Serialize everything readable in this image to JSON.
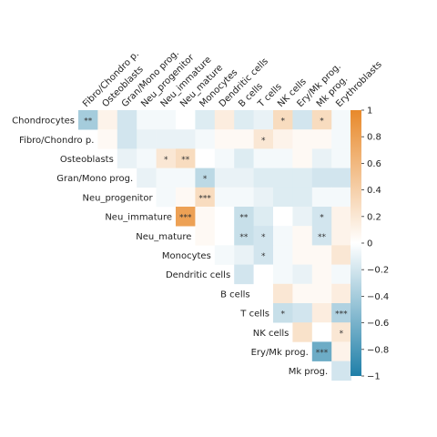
{
  "chart_data": {
    "type": "heatmap",
    "title": "",
    "xlabel": "",
    "ylabel": "",
    "rows": [
      "Chondrocytes",
      "Fibro/Chondro p.",
      "Osteoblasts",
      "Gran/Mono prog.",
      "Neu_progenitor",
      "Neu_immature",
      "Neu_mature",
      "Monocytes",
      "Dendritic cells",
      "B cells",
      "T cells",
      "NK cells",
      "Ery/Mk prog.",
      "Mk prog."
    ],
    "columns": [
      "Fibro/Chondro p.",
      "Osteoblasts",
      "Gran/Mono prog.",
      "Neu_progenitor",
      "Neu_immature",
      "Neu_mature",
      "Monocytes",
      "Dendritic cells",
      "B cells",
      "T cells",
      "NK cells",
      "Ery/Mk prog.",
      "Mk prog.",
      "Erythroblasts"
    ],
    "values": [
      [
        -0.4,
        0.1,
        -0.2,
        -0.05,
        -0.05,
        0,
        -0.15,
        0.15,
        -0.15,
        -0.1,
        0.3,
        -0.2,
        0.3,
        -0.05
      ],
      [
        null,
        0.05,
        -0.2,
        -0.1,
        -0.1,
        -0.1,
        -0.05,
        0.05,
        0.05,
        0.2,
        0.1,
        0.05,
        0.05,
        -0.05
      ],
      [
        null,
        null,
        -0.1,
        -0.05,
        0.2,
        0.3,
        0,
        -0.05,
        -0.15,
        -0.05,
        -0.05,
        0.05,
        -0.1,
        -0.05
      ],
      [
        null,
        null,
        null,
        -0.1,
        -0.05,
        -0.05,
        -0.3,
        -0.1,
        -0.1,
        -0.15,
        -0.15,
        -0.15,
        -0.2,
        -0.2
      ],
      [
        null,
        null,
        null,
        null,
        -0.05,
        0.05,
        0.3,
        -0.05,
        -0.05,
        -0.1,
        -0.15,
        -0.15,
        -0.05,
        -0.05
      ],
      [
        null,
        null,
        null,
        null,
        null,
        0.8,
        0.05,
        0,
        -0.25,
        -0.15,
        0,
        -0.1,
        -0.2,
        0.1
      ],
      [
        null,
        null,
        null,
        null,
        null,
        null,
        0.05,
        0,
        -0.25,
        -0.2,
        -0.05,
        0.05,
        -0.2,
        0.1
      ],
      [
        null,
        null,
        null,
        null,
        null,
        null,
        null,
        -0.05,
        -0.1,
        -0.2,
        -0.05,
        0.05,
        0.05,
        0.2
      ],
      [
        null,
        null,
        null,
        null,
        null,
        null,
        null,
        null,
        -0.2,
        0,
        -0.05,
        -0.1,
        0.05,
        -0.05
      ],
      [
        null,
        null,
        null,
        null,
        null,
        null,
        null,
        null,
        null,
        0,
        0.2,
        0.05,
        0.05,
        0.15
      ],
      [
        null,
        null,
        null,
        null,
        null,
        null,
        null,
        null,
        null,
        null,
        -0.25,
        -0.2,
        0.15,
        -0.35
      ],
      [
        null,
        null,
        null,
        null,
        null,
        null,
        null,
        null,
        null,
        null,
        null,
        0.25,
        0,
        0.2
      ],
      [
        null,
        null,
        null,
        null,
        null,
        null,
        null,
        null,
        null,
        null,
        null,
        null,
        -0.65,
        0.1
      ],
      [
        null,
        null,
        null,
        null,
        null,
        null,
        null,
        null,
        null,
        null,
        null,
        null,
        null,
        -0.2
      ]
    ],
    "significance": [
      [
        "**",
        "",
        "",
        "",
        "",
        "",
        "",
        "",
        "",
        "",
        "*",
        "",
        "*",
        ""
      ],
      [
        "",
        "",
        "",
        "",
        "",
        "",
        "",
        "",
        "",
        "*",
        "",
        "",
        "",
        ""
      ],
      [
        "",
        "",
        "",
        "",
        "*",
        "**",
        "",
        "",
        "",
        "",
        "",
        "",
        "",
        ""
      ],
      [
        "",
        "",
        "",
        "",
        "",
        "",
        "*",
        "",
        "",
        "",
        "",
        "",
        "",
        ""
      ],
      [
        "",
        "",
        "",
        "",
        "",
        "",
        "***",
        "",
        "",
        "",
        "",
        "",
        "",
        ""
      ],
      [
        "",
        "",
        "",
        "",
        "",
        "***",
        "",
        "",
        "**",
        "",
        "",
        "",
        "*",
        ""
      ],
      [
        "",
        "",
        "",
        "",
        "",
        "",
        "",
        "",
        "**",
        "*",
        "",
        "",
        "**",
        ""
      ],
      [
        "",
        "",
        "",
        "",
        "",
        "",
        "",
        "",
        "",
        "*",
        "",
        "",
        "",
        ""
      ],
      [
        "",
        "",
        "",
        "",
        "",
        "",
        "",
        "",
        "",
        "",
        "",
        "",
        "",
        ""
      ],
      [
        "",
        "",
        "",
        "",
        "",
        "",
        "",
        "",
        "",
        "",
        "",
        "",
        "",
        ""
      ],
      [
        "",
        "",
        "",
        "",
        "",
        "",
        "",
        "",
        "",
        "",
        "*",
        "",
        "",
        "***"
      ],
      [
        "",
        "",
        "",
        "",
        "",
        "",
        "",
        "",
        "",
        "",
        "",
        "",
        "",
        "*"
      ],
      [
        "",
        "",
        "",
        "",
        "",
        "",
        "",
        "",
        "",
        "",
        "",
        "",
        "***",
        ""
      ],
      [
        "",
        "",
        "",
        "",
        "",
        "",
        "",
        "",
        "",
        "",
        "",
        "",
        "",
        ""
      ]
    ],
    "colorbar": {
      "range": [
        -1,
        1
      ],
      "ticks": [
        1,
        0.8,
        0.6,
        0.4,
        0.2,
        0,
        -0.2,
        -0.4,
        -0.6,
        -0.8,
        -1
      ],
      "tick_labels": [
        "1",
        "0.8",
        "0.6",
        "0.4",
        "0.2",
        "0",
        "−0.2",
        "−0.4",
        "−0.6",
        "−0.8",
        "−1"
      ],
      "colors": {
        "negative": "#1f7fa8",
        "neutral": "#ffffff",
        "positive": "#e8892a"
      }
    },
    "grid": false,
    "legend": "right"
  }
}
